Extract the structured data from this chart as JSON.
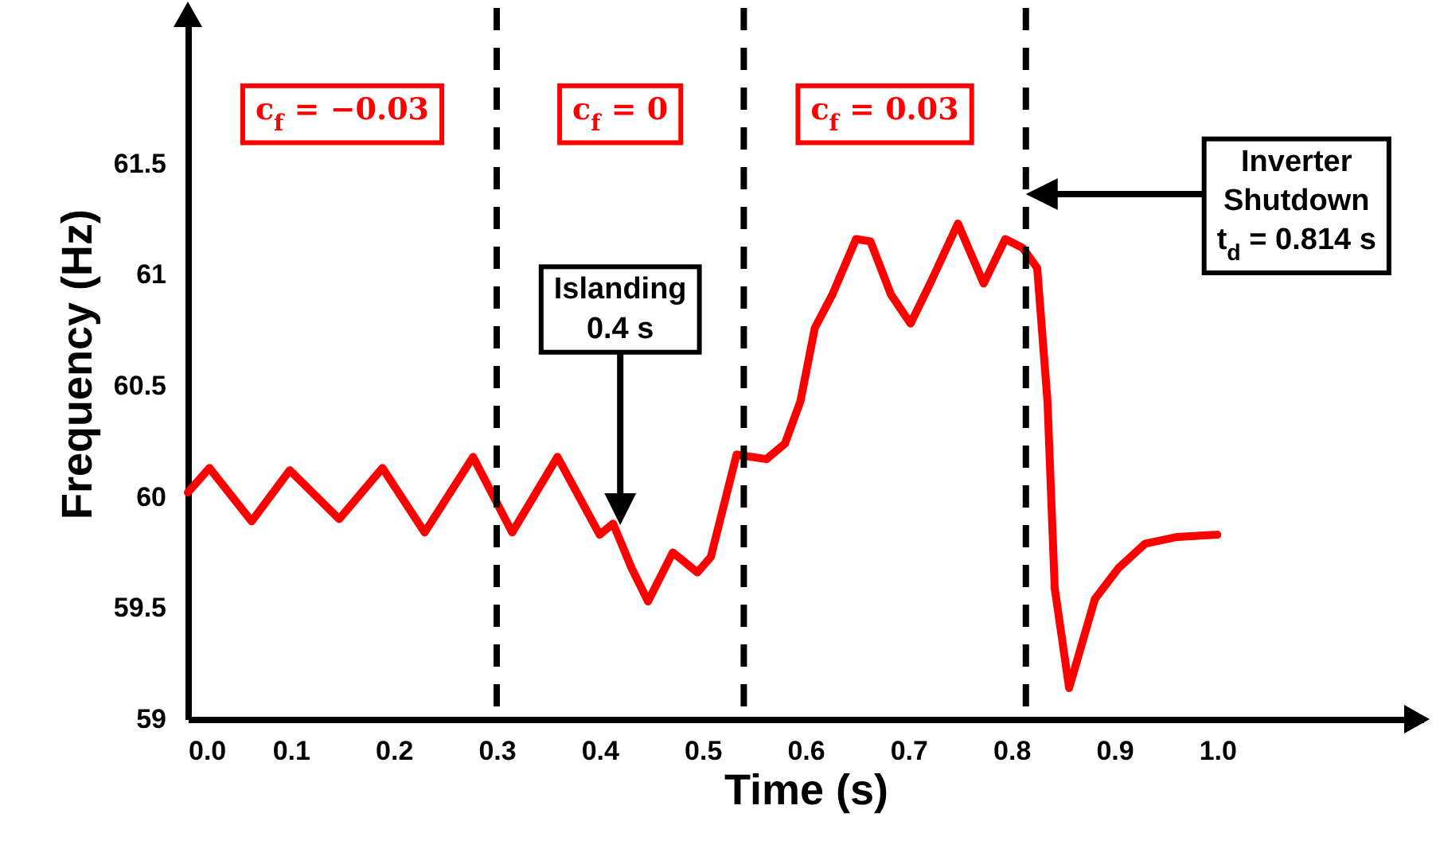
{
  "chart_data": {
    "type": "line",
    "xlabel": "Time (s)",
    "ylabel": "Frequency (Hz)",
    "x": [
      0,
      0.021,
      0.062,
      0.099,
      0.147,
      0.189,
      0.23,
      0.277,
      0.315,
      0.359,
      0.4,
      0.413,
      0.431,
      0.447,
      0.471,
      0.495,
      0.508,
      0.533,
      0.562,
      0.58,
      0.595,
      0.609,
      0.626,
      0.649,
      0.663,
      0.683,
      0.702,
      0.722,
      0.748,
      0.773,
      0.794,
      0.811,
      0.825,
      0.835,
      0.842,
      0.856,
      0.881,
      0.904,
      0.93,
      0.961,
      1.0
    ],
    "series": [
      {
        "color": "#ff0000",
        "values": [
          60.02,
          60.13,
          59.89,
          60.12,
          59.9,
          60.13,
          59.84,
          60.18,
          59.84,
          60.18,
          59.83,
          59.88,
          59.68,
          59.53,
          59.75,
          59.66,
          59.73,
          60.19,
          60.17,
          60.24,
          60.43,
          60.76,
          60.91,
          61.16,
          61.15,
          60.91,
          60.78,
          60.97,
          61.23,
          60.96,
          61.16,
          61.12,
          61.03,
          60.43,
          59.59,
          59.14,
          59.54,
          59.68,
          59.79,
          59.82,
          59.83
        ]
      }
    ],
    "xlim": [
      0,
      1.2
    ],
    "ylim": [
      59,
      62.2
    ],
    "xticks": [
      {
        "value": 0,
        "label": "0.0"
      },
      0.1,
      0.2,
      0.3,
      0.4,
      0.5,
      0.6,
      0.7,
      0.8,
      0.9,
      {
        "value": 1,
        "label": "1.0"
      }
    ],
    "yticks": [
      59,
      59.5,
      60,
      60.5,
      61,
      61.5
    ],
    "ref_lines": [
      {
        "axis": "x",
        "value": 0.3,
        "color": "#000000",
        "line_style": "dashed"
      },
      {
        "axis": "x",
        "value": 0.54,
        "color": "#000000",
        "line_style": "dashed"
      },
      {
        "axis": "x",
        "value": 0.814,
        "color": "#000000",
        "line_style": "dashed"
      }
    ],
    "annotations": [
      "c$_{f}$ = −0.03",
      "c$_{f}$ = 0",
      "c$_{f}$ = 0.03",
      "Islanding\n0.4 s",
      "Inverter\nShutdown\nt$_{d}$ = 0.814 s"
    ]
  }
}
